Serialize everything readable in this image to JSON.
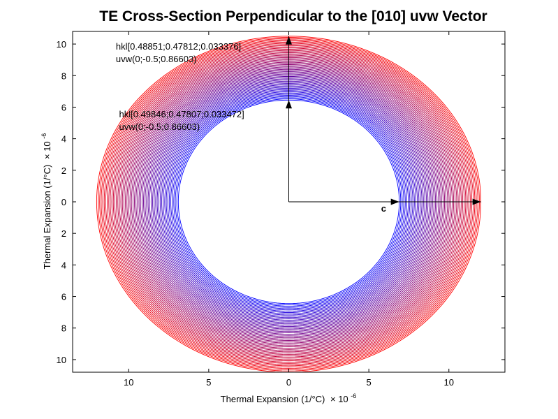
{
  "chart_data": {
    "type": "line",
    "title": "TE Cross-Section Perpendicular to the [010] uvw Vector",
    "xlabel": "Thermal Expansion (1/°C)",
    "xlabel_exp": "-6",
    "ylabel": "Thermal Expansion (1/°C)",
    "ylabel_exp": "-6",
    "exp_prefix": "× 10",
    "xlim": [
      -13.5,
      13.5
    ],
    "ylim": [
      -10.8,
      10.8
    ],
    "xticks": [
      -10,
      -5,
      0,
      5,
      10
    ],
    "xtick_labels": [
      "10",
      "5",
      "0",
      "5",
      "10"
    ],
    "yticks": [
      10,
      8,
      6,
      4,
      2,
      0,
      -2,
      -4,
      -6,
      -8,
      -10
    ],
    "ytick_labels": [
      "10",
      "8",
      "6",
      "4",
      "2",
      "0",
      "2",
      "4",
      "6",
      "8",
      "10"
    ],
    "grid": false,
    "rings": {
      "count": 55,
      "inner": {
        "a": 6.9,
        "b_top": 6.45,
        "b_bottom": 6.45,
        "color": "#0000ff"
      },
      "outer": {
        "a": 12.0,
        "b_top": 10.5,
        "b_bottom": 10.8,
        "color": "#ff0000"
      }
    },
    "vectors": [
      {
        "label": "",
        "x": 0,
        "y": 6.45
      },
      {
        "label": "",
        "x": 0,
        "y": 10.5
      },
      {
        "label": "c",
        "x": 6.9,
        "y": 0
      },
      {
        "label": "",
        "x": 12.0,
        "y": 0
      }
    ],
    "annotations": [
      {
        "line1": "hkl[0.48851;0.47812;0.033376]",
        "line2": "uvw(0;-0.5;0.86603)",
        "x": -10.8,
        "y": 9.65
      },
      {
        "line1": "hkl[0.49846;0.47807;0.033472]",
        "line2": "uvw(0;-0.5;0.86603)",
        "x": -10.6,
        "y": 5.35
      }
    ]
  }
}
